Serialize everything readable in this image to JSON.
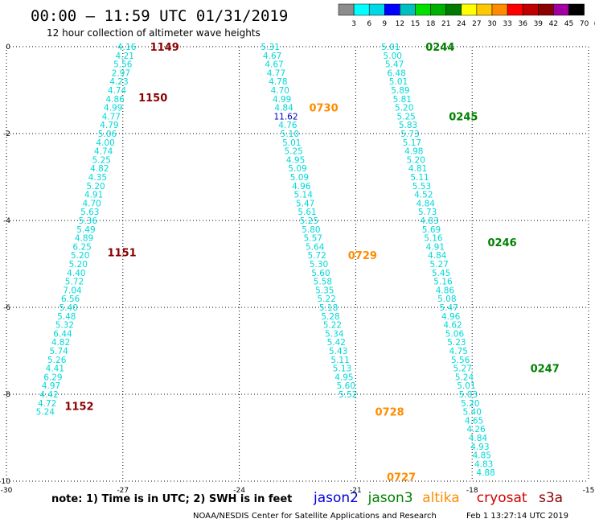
{
  "title": "00:00 — 11:59 UTC 01/31/2019",
  "subtitle": "12 hour collection of altimeter wave heights",
  "footer_note": "note: 1) Time is in UTC; 2) SWH is in feet",
  "credit": "NOAA/NESDIS Center for Satellite Applications and Research",
  "generated": "Feb  1 13:27:14 UTC 2019",
  "colorbar": {
    "ticks": [
      "3",
      "6",
      "9",
      "12",
      "15",
      "18",
      "21",
      "24",
      "27",
      "30",
      "33",
      "36",
      "39",
      "42",
      "45",
      "70"
    ],
    "unit": "(ft)",
    "colors": [
      "#8c8c8c",
      "#00ffff",
      "#00d8e8",
      "#0000ff",
      "#00bfbf",
      "#00e000",
      "#00b000",
      "#007a00",
      "#ffff00",
      "#ffc800",
      "#ff8c00",
      "#ff0000",
      "#c00000",
      "#8b0000",
      "#a000a0",
      "#000000"
    ]
  },
  "legend": [
    {
      "name": "jason2",
      "color": "#0000e0"
    },
    {
      "name": "jason3",
      "color": "#008000"
    },
    {
      "name": "altika",
      "color": "#ff8c00"
    },
    {
      "name": "cryosat",
      "color": "#d00000"
    },
    {
      "name": "s3a",
      "color": "#8b0000"
    }
  ],
  "chart_data": {
    "type": "scatter",
    "xlim": [
      -30,
      -15
    ],
    "ylim": [
      -10,
      0
    ],
    "xticks": [
      "-30",
      "-27",
      "-24",
      "-21",
      "-18",
      "-15"
    ],
    "yticks": [
      "0",
      "-2",
      "-4",
      "-6",
      "-8",
      "-10"
    ],
    "grid": true,
    "value_color": "#00d8d8",
    "highlight_color": "#0000c0",
    "series": [
      {
        "name": "s3a",
        "color": "#8b0000",
        "labels": [
          {
            "text": "1149",
            "x": -26.3,
            "y": 0.0
          },
          {
            "text": "1150",
            "x": -26.6,
            "y": -1.17
          },
          {
            "text": "1151",
            "x": -27.4,
            "y": -4.73
          },
          {
            "text": "1152",
            "x": -28.5,
            "y": -8.27
          }
        ],
        "points": [
          {
            "x": -26.9,
            "y": 0.0,
            "v": "4.16"
          },
          {
            "x": -26.95,
            "y": -0.2,
            "v": "4.21"
          },
          {
            "x": -27.0,
            "y": -0.4,
            "v": "5.56"
          },
          {
            "x": -27.05,
            "y": -0.6,
            "v": "2.97"
          },
          {
            "x": -27.1,
            "y": -0.8,
            "v": "4.23"
          },
          {
            "x": -27.15,
            "y": -1.0,
            "v": "4.74"
          },
          {
            "x": -27.2,
            "y": -1.2,
            "v": "4.86"
          },
          {
            "x": -27.25,
            "y": -1.4,
            "v": "4.99"
          },
          {
            "x": -27.3,
            "y": -1.6,
            "v": "4.77"
          },
          {
            "x": -27.35,
            "y": -1.8,
            "v": "4.79"
          },
          {
            "x": -27.4,
            "y": -2.0,
            "v": "5.06"
          },
          {
            "x": -27.45,
            "y": -2.2,
            "v": "4.00"
          },
          {
            "x": -27.5,
            "y": -2.4,
            "v": "4.74"
          },
          {
            "x": -27.55,
            "y": -2.6,
            "v": "5.25"
          },
          {
            "x": -27.6,
            "y": -2.8,
            "v": "4.82"
          },
          {
            "x": -27.65,
            "y": -3.0,
            "v": "4.35"
          },
          {
            "x": -27.7,
            "y": -3.2,
            "v": "5.20"
          },
          {
            "x": -27.75,
            "y": -3.4,
            "v": "4.91"
          },
          {
            "x": -27.8,
            "y": -3.6,
            "v": "4.70"
          },
          {
            "x": -27.85,
            "y": -3.8,
            "v": "5.63"
          },
          {
            "x": -27.9,
            "y": -4.0,
            "v": "5.36"
          },
          {
            "x": -27.95,
            "y": -4.2,
            "v": "5.49"
          },
          {
            "x": -28.0,
            "y": -4.4,
            "v": "4.89"
          },
          {
            "x": -28.05,
            "y": -4.6,
            "v": "6.25"
          },
          {
            "x": -28.1,
            "y": -4.8,
            "v": "5.20"
          },
          {
            "x": -28.15,
            "y": -5.0,
            "v": "5.20"
          },
          {
            "x": -28.2,
            "y": -5.2,
            "v": "4.40"
          },
          {
            "x": -28.25,
            "y": -5.4,
            "v": "5.72"
          },
          {
            "x": -28.3,
            "y": -5.6,
            "v": "7.04"
          },
          {
            "x": -28.35,
            "y": -5.8,
            "v": "6.56"
          },
          {
            "x": -28.4,
            "y": -6.0,
            "v": "5.40"
          },
          {
            "x": -28.45,
            "y": -6.2,
            "v": "5.48"
          },
          {
            "x": -28.5,
            "y": -6.4,
            "v": "5.32"
          },
          {
            "x": -28.55,
            "y": -6.6,
            "v": "6.44"
          },
          {
            "x": -28.6,
            "y": -6.8,
            "v": "4.82"
          },
          {
            "x": -28.65,
            "y": -7.0,
            "v": "5.74"
          },
          {
            "x": -28.7,
            "y": -7.2,
            "v": "5.26"
          },
          {
            "x": -28.75,
            "y": -7.4,
            "v": "4.41"
          },
          {
            "x": -28.8,
            "y": -7.6,
            "v": "6.29"
          },
          {
            "x": -28.85,
            "y": -7.8,
            "v": "4.97"
          },
          {
            "x": -28.9,
            "y": -8.0,
            "v": "4.42"
          },
          {
            "x": -28.95,
            "y": -8.2,
            "v": "4.72"
          },
          {
            "x": -29.0,
            "y": -8.4,
            "v": "5.24"
          }
        ]
      },
      {
        "name": "altika",
        "color": "#ff8c00",
        "labels": [
          {
            "text": "0730",
            "x": -22.2,
            "y": -1.4
          },
          {
            "text": "0729",
            "x": -21.2,
            "y": -4.8
          },
          {
            "text": "0728",
            "x": -20.5,
            "y": -8.4
          },
          {
            "text": "0727",
            "x": -20.2,
            "y": -9.9
          }
        ],
        "points": [
          {
            "x": -23.2,
            "y": 0.0,
            "v": "5.31"
          },
          {
            "x": -23.15,
            "y": -0.2,
            "v": "4.67"
          },
          {
            "x": -23.1,
            "y": -0.4,
            "v": "4.67"
          },
          {
            "x": -23.05,
            "y": -0.6,
            "v": "4.77"
          },
          {
            "x": -23.0,
            "y": -0.8,
            "v": "4.78"
          },
          {
            "x": -22.95,
            "y": -1.0,
            "v": "4.70"
          },
          {
            "x": -22.9,
            "y": -1.2,
            "v": "4.99"
          },
          {
            "x": -22.85,
            "y": -1.4,
            "v": "4.84"
          },
          {
            "x": -22.8,
            "y": -1.6,
            "v": "11.62",
            "hl": true
          },
          {
            "x": -22.75,
            "y": -1.8,
            "v": "4.76"
          },
          {
            "x": -22.7,
            "y": -2.0,
            "v": "5.10"
          },
          {
            "x": -22.65,
            "y": -2.2,
            "v": "5.01"
          },
          {
            "x": -22.6,
            "y": -2.4,
            "v": "5.25"
          },
          {
            "x": -22.55,
            "y": -2.6,
            "v": "4.95"
          },
          {
            "x": -22.5,
            "y": -2.8,
            "v": "5.09"
          },
          {
            "x": -22.45,
            "y": -3.0,
            "v": "5.09"
          },
          {
            "x": -22.4,
            "y": -3.2,
            "v": "4.96"
          },
          {
            "x": -22.35,
            "y": -3.4,
            "v": "5.14"
          },
          {
            "x": -22.3,
            "y": -3.6,
            "v": "5.47"
          },
          {
            "x": -22.25,
            "y": -3.8,
            "v": "5.61"
          },
          {
            "x": -22.2,
            "y": -4.0,
            "v": "5.25"
          },
          {
            "x": -22.15,
            "y": -4.2,
            "v": "5.80"
          },
          {
            "x": -22.1,
            "y": -4.4,
            "v": "5.57"
          },
          {
            "x": -22.05,
            "y": -4.6,
            "v": "5.64"
          },
          {
            "x": -22.0,
            "y": -4.8,
            "v": "5.72"
          },
          {
            "x": -21.95,
            "y": -5.0,
            "v": "5.30"
          },
          {
            "x": -21.9,
            "y": -5.2,
            "v": "5.60"
          },
          {
            "x": -21.85,
            "y": -5.4,
            "v": "5.58"
          },
          {
            "x": -21.8,
            "y": -5.6,
            "v": "5.35"
          },
          {
            "x": -21.75,
            "y": -5.8,
            "v": "5.22"
          },
          {
            "x": -21.7,
            "y": -6.0,
            "v": "5.18"
          },
          {
            "x": -21.65,
            "y": -6.2,
            "v": "5.28"
          },
          {
            "x": -21.6,
            "y": -6.4,
            "v": "5.22"
          },
          {
            "x": -21.55,
            "y": -6.6,
            "v": "5.34"
          },
          {
            "x": -21.5,
            "y": -6.8,
            "v": "5.42"
          },
          {
            "x": -21.45,
            "y": -7.0,
            "v": "5.43"
          },
          {
            "x": -21.4,
            "y": -7.2,
            "v": "5.11"
          },
          {
            "x": -21.35,
            "y": -7.4,
            "v": "5.13"
          },
          {
            "x": -21.3,
            "y": -7.6,
            "v": "4.95"
          },
          {
            "x": -21.25,
            "y": -7.8,
            "v": "5.60"
          },
          {
            "x": -21.2,
            "y": -8.0,
            "v": "5.52"
          }
        ]
      },
      {
        "name": "jason3",
        "color": "#008000",
        "labels": [
          {
            "text": "0244",
            "x": -19.2,
            "y": 0.0
          },
          {
            "text": "0245",
            "x": -18.6,
            "y": -1.6
          },
          {
            "text": "0246",
            "x": -17.6,
            "y": -4.5
          },
          {
            "text": "0247",
            "x": -16.5,
            "y": -7.4
          }
        ],
        "points": [
          {
            "x": -20.1,
            "y": 0.0,
            "v": "5.01"
          },
          {
            "x": -20.05,
            "y": -0.2,
            "v": "5.00"
          },
          {
            "x": -20.0,
            "y": -0.4,
            "v": "5.47"
          },
          {
            "x": -19.95,
            "y": -0.6,
            "v": "6.48"
          },
          {
            "x": -19.9,
            "y": -0.8,
            "v": "5.01"
          },
          {
            "x": -19.85,
            "y": -1.0,
            "v": "5.89"
          },
          {
            "x": -19.8,
            "y": -1.2,
            "v": "5.81"
          },
          {
            "x": -19.75,
            "y": -1.4,
            "v": "5.20"
          },
          {
            "x": -19.7,
            "y": -1.6,
            "v": "5.25"
          },
          {
            "x": -19.65,
            "y": -1.8,
            "v": "5.83"
          },
          {
            "x": -19.6,
            "y": -2.0,
            "v": "5.73"
          },
          {
            "x": -19.55,
            "y": -2.2,
            "v": "5.17"
          },
          {
            "x": -19.5,
            "y": -2.4,
            "v": "4.98"
          },
          {
            "x": -19.45,
            "y": -2.6,
            "v": "5.20"
          },
          {
            "x": -19.4,
            "y": -2.8,
            "v": "4.81"
          },
          {
            "x": -19.35,
            "y": -3.0,
            "v": "5.11"
          },
          {
            "x": -19.3,
            "y": -3.2,
            "v": "5.53"
          },
          {
            "x": -19.25,
            "y": -3.4,
            "v": "4.52"
          },
          {
            "x": -19.2,
            "y": -3.6,
            "v": "4.84"
          },
          {
            "x": -19.15,
            "y": -3.8,
            "v": "5.73"
          },
          {
            "x": -19.1,
            "y": -4.0,
            "v": "4.83"
          },
          {
            "x": -19.05,
            "y": -4.2,
            "v": "5.69"
          },
          {
            "x": -19.0,
            "y": -4.4,
            "v": "5.16"
          },
          {
            "x": -18.95,
            "y": -4.6,
            "v": "4.91"
          },
          {
            "x": -18.9,
            "y": -4.8,
            "v": "4.84"
          },
          {
            "x": -18.85,
            "y": -5.0,
            "v": "5.27"
          },
          {
            "x": -18.8,
            "y": -5.2,
            "v": "5.45"
          },
          {
            "x": -18.75,
            "y": -5.4,
            "v": "5.16"
          },
          {
            "x": -18.7,
            "y": -5.6,
            "v": "4.86"
          },
          {
            "x": -18.65,
            "y": -5.8,
            "v": "5.08"
          },
          {
            "x": -18.6,
            "y": -6.0,
            "v": "5.47"
          },
          {
            "x": -18.55,
            "y": -6.2,
            "v": "4.96"
          },
          {
            "x": -18.5,
            "y": -6.4,
            "v": "4.62"
          },
          {
            "x": -18.45,
            "y": -6.6,
            "v": "5.06"
          },
          {
            "x": -18.4,
            "y": -6.8,
            "v": "5.23"
          },
          {
            "x": -18.35,
            "y": -7.0,
            "v": "4.75"
          },
          {
            "x": -18.3,
            "y": -7.2,
            "v": "5.56"
          },
          {
            "x": -18.25,
            "y": -7.4,
            "v": "5.27"
          },
          {
            "x": -18.2,
            "y": -7.6,
            "v": "5.24"
          },
          {
            "x": -18.15,
            "y": -7.8,
            "v": "5.01"
          },
          {
            "x": -18.1,
            "y": -8.0,
            "v": "5.03"
          },
          {
            "x": -18.05,
            "y": -8.2,
            "v": "5.20"
          },
          {
            "x": -18.0,
            "y": -8.4,
            "v": "5.40"
          },
          {
            "x": -17.95,
            "y": -8.6,
            "v": "4.65"
          },
          {
            "x": -17.9,
            "y": -8.8,
            "v": "4.26"
          },
          {
            "x": -17.85,
            "y": -9.0,
            "v": "4.84"
          },
          {
            "x": -17.8,
            "y": -9.2,
            "v": "4.93"
          },
          {
            "x": -17.75,
            "y": -9.4,
            "v": "4.85"
          },
          {
            "x": -17.7,
            "y": -9.6,
            "v": "4.83"
          },
          {
            "x": -17.65,
            "y": -9.8,
            "v": "4.88"
          }
        ]
      }
    ]
  }
}
